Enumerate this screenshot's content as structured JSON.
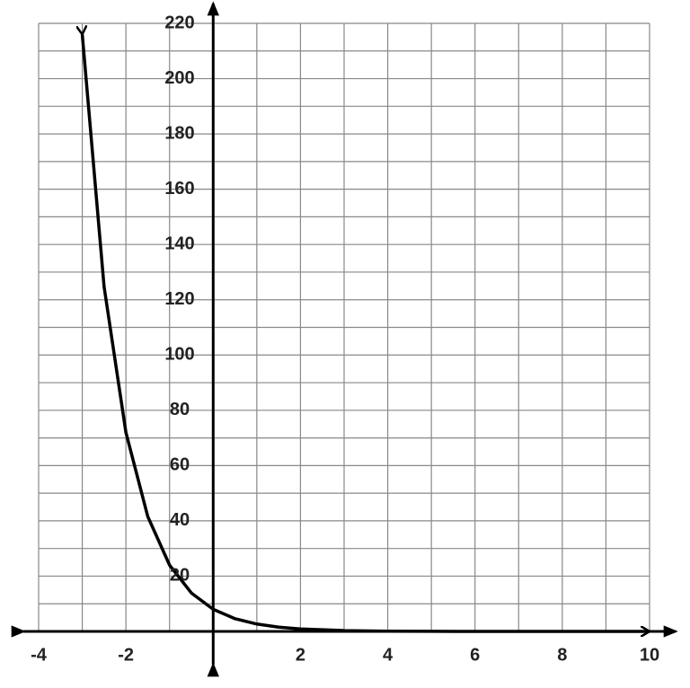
{
  "chart_data": {
    "type": "line",
    "x": [
      -3,
      -2.5,
      -2,
      -1.5,
      -1,
      -0.5,
      0,
      0.5,
      1,
      1.5,
      2,
      3,
      4,
      5,
      6,
      7,
      8,
      9,
      10
    ],
    "series": [
      {
        "color": "#000000",
        "values": [
          216,
          124.7,
          72,
          41.6,
          24,
          13.9,
          8,
          4.6,
          2.67,
          1.54,
          0.89,
          0.3,
          0.1,
          0.03,
          0.01,
          0,
          0,
          0,
          0
        ]
      }
    ],
    "xlim": [
      -4,
      10
    ],
    "ylim": [
      0,
      220
    ],
    "xticks": [
      -4,
      -2,
      2,
      4,
      6,
      8,
      10
    ],
    "yticks": [
      20,
      40,
      60,
      80,
      100,
      120,
      140,
      160,
      180,
      200,
      220
    ],
    "grid": true
  }
}
